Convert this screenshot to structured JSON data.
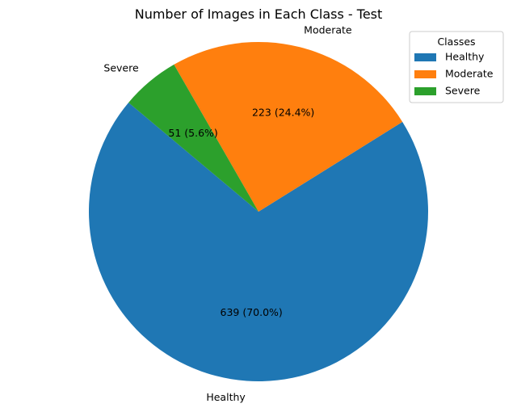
{
  "chart_data": {
    "type": "pie",
    "title": "Number of Images in Each Class - Test",
    "start_angle_deg": 140,
    "direction": "counterclockwise",
    "slices": [
      {
        "label": "Healthy",
        "value": 639,
        "autopct": "639 (70.0%)",
        "color": "#1f77b4"
      },
      {
        "label": "Moderate",
        "value": 223,
        "autopct": "223 (24.4%)",
        "color": "#ff7f0e"
      },
      {
        "label": "Severe",
        "value": 51,
        "autopct": "51 (5.6%)",
        "color": "#2ca02c"
      }
    ],
    "legend": {
      "title": "Classes",
      "placement": "top-right",
      "entries": [
        "Healthy",
        "Moderate",
        "Severe"
      ]
    }
  }
}
